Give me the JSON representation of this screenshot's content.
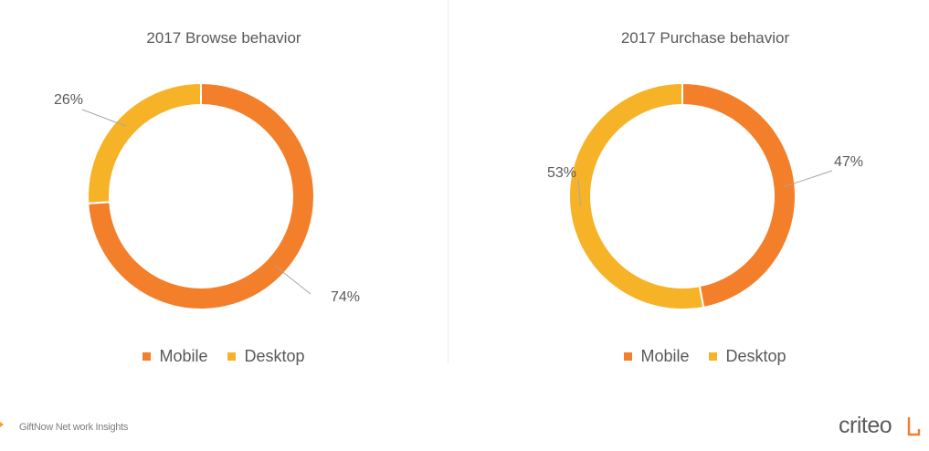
{
  "colors": {
    "mobile": "#f47f2a",
    "desktop": "#f7b327",
    "text": "#595959"
  },
  "legend": {
    "mobile": "Mobile",
    "desktop": "Desktop"
  },
  "chart_data": [
    {
      "type": "pie",
      "title": "2017 Browse behavior",
      "donut": true,
      "categories": [
        "Mobile",
        "Desktop"
      ],
      "values": [
        74,
        26
      ],
      "labels": [
        "74%",
        "26%"
      ]
    },
    {
      "type": "pie",
      "title": "2017 Purchase behavior",
      "donut": true,
      "categories": [
        "Mobile",
        "Desktop"
      ],
      "values": [
        47,
        53
      ],
      "labels": [
        "47%",
        "53%"
      ]
    }
  ],
  "footer": {
    "text": "GiftNow Net work Insights"
  },
  "logo": {
    "text": "criteo"
  }
}
